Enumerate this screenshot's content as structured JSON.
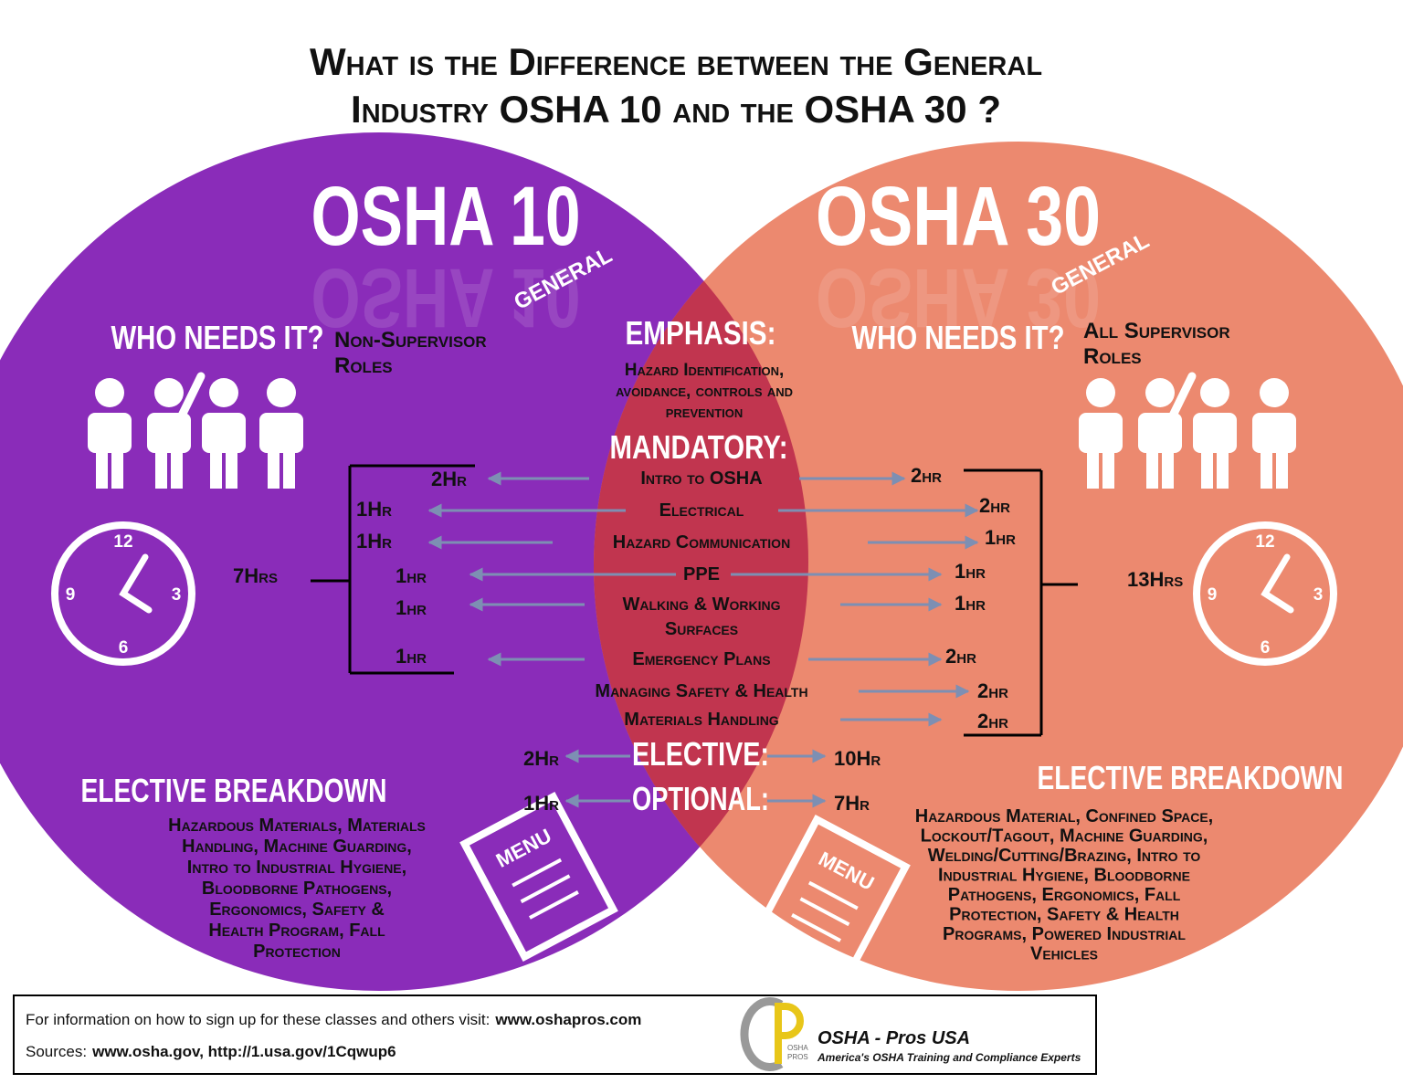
{
  "title_lines": [
    "What is the Difference between the General",
    "Industry OSHA 10 and the OSHA 30 ?"
  ],
  "left": {
    "heading": "OSHA 10",
    "tag": "GENERAL",
    "who_label": "WHO NEEDS IT?",
    "who_lines": [
      "Non-Supervisor",
      "Roles"
    ],
    "clock": [
      "12",
      "3",
      "6",
      "9"
    ],
    "total": "7Hrs",
    "elective_heading": "ELECTIVE BREAKDOWN",
    "elective_lines": [
      "Hazardous Materials, Materials",
      "Handling, Machine Guarding,",
      "Intro to Industrial Hygiene,",
      "Bloodborne Pathogens,",
      "Ergonomics, Safety &",
      "Health Program, Fall",
      "Protection"
    ],
    "menu": "MENU"
  },
  "right": {
    "heading": "OSHA 30",
    "tag": "GENERAL",
    "who_label": "WHO NEEDS IT?",
    "who_lines": [
      "All Supervisor",
      "Roles"
    ],
    "clock": [
      "12",
      "3",
      "6",
      "9"
    ],
    "total": "13Hrs",
    "elective_heading": "ELECTIVE BREAKDOWN",
    "elective_lines": [
      "Hazardous Material, Confined Space,",
      "Lockout/Tagout, Machine Guarding,",
      "Welding/Cutting/Brazing, Intro to",
      "Industrial Hygiene, Bloodborne",
      "Pathogens, Ergonomics, Fall",
      "Protection, Safety & Health",
      "Programs, Powered Industrial",
      "Vehicles"
    ],
    "menu": "MENU"
  },
  "center": {
    "emphasis_label": "EMPHASIS:",
    "emphasis_lines": [
      "Hazard Identification,",
      "avoidance, controls and",
      "prevention"
    ],
    "mandatory_label": "MANDATORY:",
    "topics": [
      {
        "name_lines": [
          "Intro to OSHA"
        ],
        "osha10": "2Hr",
        "osha30": "2hr"
      },
      {
        "name_lines": [
          "Electrical"
        ],
        "osha10": "1Hr",
        "osha30": "2hr"
      },
      {
        "name_lines": [
          "Hazard Communication"
        ],
        "osha10": "1Hr",
        "osha30": "1hr"
      },
      {
        "name_lines": [
          "PPE"
        ],
        "osha10": "1hr",
        "osha30": "1hr"
      },
      {
        "name_lines": [
          "Walking & Working",
          "Surfaces"
        ],
        "osha10": "1hr",
        "osha30": "1hr"
      },
      {
        "name_lines": [
          "Emergency Plans"
        ],
        "osha10": "1hr",
        "osha30": "2hr"
      },
      {
        "name_lines": [
          "Managing Safety & Health"
        ],
        "osha10": null,
        "osha30": "2hr"
      },
      {
        "name_lines": [
          "Materials Handling"
        ],
        "osha10": null,
        "osha30": "2hr"
      }
    ],
    "elective_label": "ELECTIVE:",
    "elective_osha10": "2Hr",
    "elective_osha30": "10Hr",
    "optional_label": "OPTIONAL:",
    "optional_osha10": "1Hr",
    "optional_osha30": "7Hr"
  },
  "footer": {
    "info": "For information on how to sign up for these classes and others visit:",
    "info_link": "www.oshapros.com",
    "sources_label": "Sources:",
    "sources": "www.osha.gov, http://1.usa.gov/1Cqwup6",
    "logo_lines": [
      "OSHA",
      "PROS"
    ],
    "brand": "OSHA - Pros USA",
    "tagline": "America's OSHA Training and Compliance Experts"
  }
}
